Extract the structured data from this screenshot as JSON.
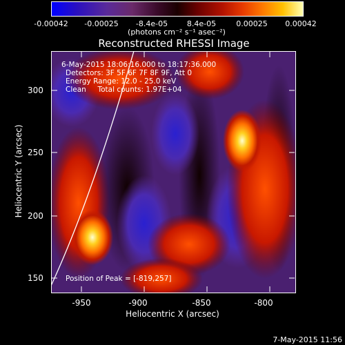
{
  "colorbar": {
    "ticks": [
      "-0.00042",
      "-0.00025",
      "-8.4e-05",
      "8.4e-05",
      "0.00025",
      "0.00042"
    ],
    "units": "(photons cm⁻² s⁻¹ asec⁻²)"
  },
  "plot": {
    "title": "Reconstructed RHESSI Image",
    "xlabel": "Heliocentric X (arcsec)",
    "ylabel": "Heliocentric Y (arcsec)",
    "xticks": [
      "-950",
      "-900",
      "-850",
      "-800"
    ],
    "yticks": [
      "300",
      "250",
      "200",
      "150"
    ],
    "annotations": {
      "time": "6-May-2015 18:06:16.000 to 18:17:36.000",
      "detectors": "Detectors: 3F 5F 6F 7F 8F 9F, Att 0",
      "energy": "Energy Range: 12.0 - 25.0 keV",
      "method": "Clean     Total counts: 1.97E+04",
      "peak": "Position of Peak = [-819,257]"
    }
  },
  "footer": {
    "timestamp": "7-May-2015 11:56"
  }
}
